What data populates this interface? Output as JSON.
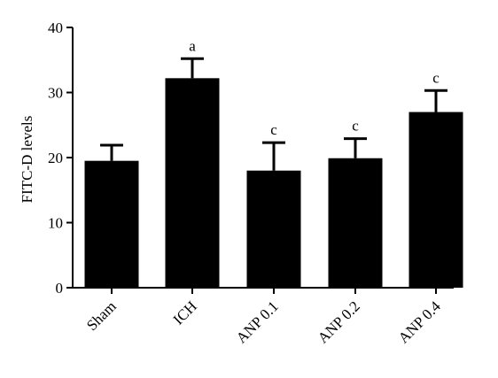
{
  "chart_data": {
    "type": "bar",
    "title": "",
    "xlabel": "",
    "ylabel": "FITC-D levels",
    "ylim": [
      0,
      40
    ],
    "yticks": [
      0,
      10,
      20,
      30,
      40
    ],
    "categories": [
      "Sham",
      "ICH",
      "ANP 0.1",
      "ANP 0.2",
      "ANP 0.4"
    ],
    "values": [
      19.5,
      32.2,
      18.0,
      19.9,
      27.0
    ],
    "errors": [
      2.4,
      3.0,
      4.3,
      3.0,
      3.3
    ],
    "significance": [
      "",
      "a",
      "c",
      "c",
      "c"
    ],
    "bar_color": "#000000",
    "grid": false,
    "legend": "none"
  }
}
